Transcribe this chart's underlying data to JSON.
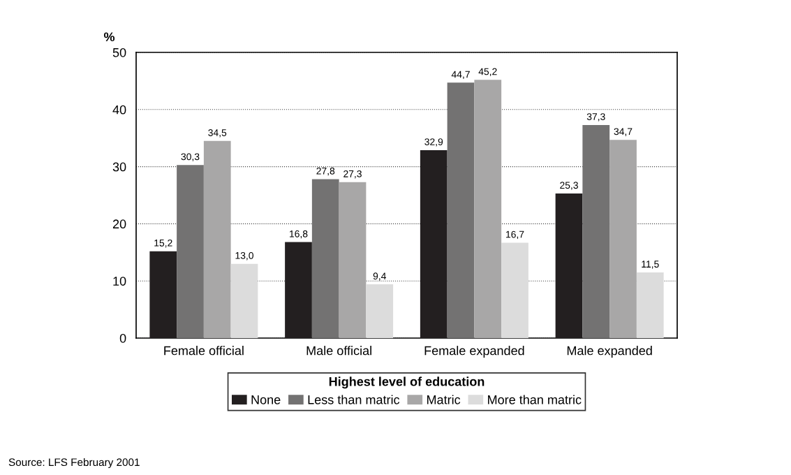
{
  "chart_data": {
    "type": "bar",
    "ylabel": "%",
    "legend_title": "Highest level of education",
    "categories": [
      "Female official",
      "Male official",
      "Female expanded",
      "Male expanded"
    ],
    "series": [
      {
        "name": "None",
        "color": "#231f20",
        "values": [
          15.2,
          16.8,
          32.9,
          25.3
        ],
        "value_labels": [
          "15,2",
          "16,8",
          "32,9",
          "25,3"
        ]
      },
      {
        "name": "Less than matric",
        "color": "#737272",
        "values": [
          30.3,
          27.8,
          44.7,
          37.3
        ],
        "value_labels": [
          "30,3",
          "27,8",
          "44,7",
          "37,3"
        ]
      },
      {
        "name": "Matric",
        "color": "#a8a7a7",
        "values": [
          34.5,
          27.3,
          45.2,
          34.7
        ],
        "value_labels": [
          "34,5",
          "27,3",
          "45,2",
          "34,7"
        ]
      },
      {
        "name": "More than matric",
        "color": "#dcdcdc",
        "values": [
          13.0,
          9.4,
          16.7,
          11.5
        ],
        "value_labels": [
          "13,0",
          "9,4",
          "16,7",
          "11,5"
        ]
      }
    ],
    "ylim": [
      0,
      50
    ],
    "yticks": [
      0,
      10,
      20,
      30,
      40,
      50
    ],
    "grid": "y",
    "legend": "bottom",
    "annotations": [
      "Source: LFS February 2001"
    ]
  }
}
